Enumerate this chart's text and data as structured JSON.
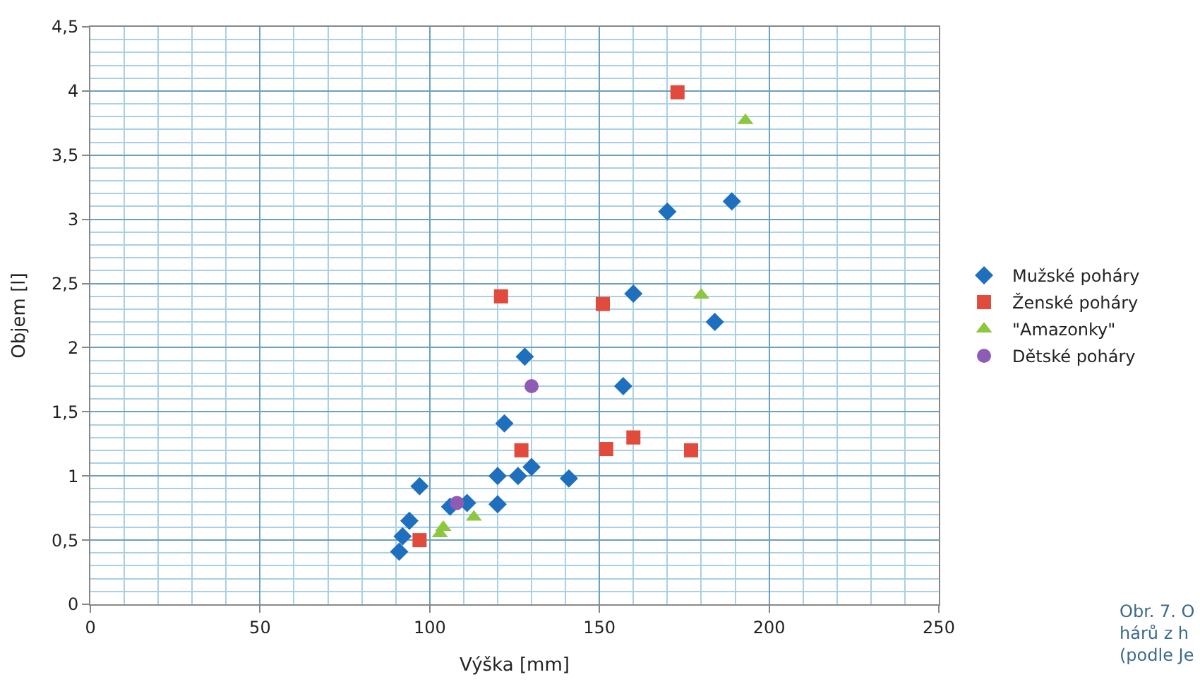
{
  "chart_data": {
    "type": "scatter",
    "xlabel": "Výška [mm]",
    "ylabel": "Objem [l]",
    "series": [
      {
        "name": "Mužské poháry",
        "color": "#1f6fbf",
        "marker": "diamond",
        "x": [
          91,
          92,
          94,
          97,
          106,
          111,
          120,
          120,
          122,
          126,
          128,
          130,
          141,
          157,
          160,
          170,
          184,
          189
        ],
        "values": [
          0.41,
          0.53,
          0.65,
          0.92,
          0.76,
          0.79,
          0.78,
          1.0,
          1.41,
          1.0,
          1.93,
          1.07,
          0.98,
          1.7,
          2.42,
          3.06,
          2.2,
          3.14
        ]
      },
      {
        "name": "Ženské poháry",
        "color": "#e04b3c",
        "marker": "square",
        "x": [
          97,
          121,
          127,
          151,
          152,
          160,
          173,
          177
        ],
        "values": [
          0.5,
          2.4,
          1.2,
          2.34,
          1.21,
          1.3,
          3.99,
          1.2
        ]
      },
      {
        "name": "\"Amazonky\"",
        "color": "#8dc63f",
        "marker": "triangle",
        "x": [
          103,
          104,
          113,
          180,
          193
        ],
        "values": [
          0.55,
          0.6,
          0.68,
          2.41,
          3.77
        ]
      },
      {
        "name": "Dětské poháry",
        "color": "#8e5bb5",
        "marker": "circle",
        "x": [
          108,
          130
        ],
        "values": [
          0.79,
          1.7
        ]
      }
    ],
    "xlim": [
      0,
      250
    ],
    "xticks": [
      0,
      {
        "value": 10,
        "label": null
      },
      {
        "value": 20,
        "label": null
      },
      {
        "value": 30,
        "label": null
      },
      {
        "value": 40,
        "label": null
      },
      50,
      {
        "value": 60,
        "label": null
      },
      {
        "value": 70,
        "label": null
      },
      {
        "value": 80,
        "label": null
      },
      {
        "value": 90,
        "label": null
      },
      100,
      {
        "value": 110,
        "label": null
      },
      {
        "value": 120,
        "label": null
      },
      {
        "value": 130,
        "label": null
      },
      {
        "value": 140,
        "label": null
      },
      150,
      {
        "value": 160,
        "label": null
      },
      {
        "value": 170,
        "label": null
      },
      {
        "value": 180,
        "label": null
      },
      {
        "value": 190,
        "label": null
      },
      200,
      {
        "value": 210,
        "label": null
      },
      {
        "value": 220,
        "label": null
      },
      {
        "value": 230,
        "label": null
      },
      {
        "value": 240,
        "label": null
      },
      250
    ],
    "ylim": [
      0,
      4.5
    ],
    "yticks": [
      0,
      {
        "value": 0.1,
        "label": null
      },
      {
        "value": 0.2,
        "label": null
      },
      {
        "value": 0.3,
        "label": null
      },
      {
        "value": 0.4,
        "label": null
      },
      {
        "value": 0.5,
        "label": "0,5"
      },
      {
        "value": 0.6,
        "label": null
      },
      {
        "value": 0.7,
        "label": null
      },
      {
        "value": 0.8,
        "label": null
      },
      {
        "value": 0.9,
        "label": null
      },
      1,
      {
        "value": 1.1,
        "label": null
      },
      {
        "value": 1.2,
        "label": null
      },
      {
        "value": 1.3,
        "label": null
      },
      {
        "value": 1.4,
        "label": null
      },
      {
        "value": 1.5,
        "label": "1,5"
      },
      {
        "value": 1.6,
        "label": null
      },
      {
        "value": 1.7,
        "label": null
      },
      {
        "value": 1.8,
        "label": null
      },
      {
        "value": 1.9,
        "label": null
      },
      2,
      {
        "value": 2.1,
        "label": null
      },
      {
        "value": 2.2,
        "label": null
      },
      {
        "value": 2.3,
        "label": null
      },
      {
        "value": 2.4,
        "label": null
      },
      {
        "value": 2.5,
        "label": "2,5"
      },
      {
        "value": 2.6,
        "label": null
      },
      {
        "value": 2.7,
        "label": null
      },
      {
        "value": 2.8,
        "label": null
      },
      {
        "value": 2.9,
        "label": null
      },
      3,
      {
        "value": 3.1,
        "label": null
      },
      {
        "value": 3.2,
        "label": null
      },
      {
        "value": 3.3,
        "label": null
      },
      {
        "value": 3.4,
        "label": null
      },
      {
        "value": 3.5,
        "label": "3,5"
      },
      {
        "value": 3.6,
        "label": null
      },
      {
        "value": 3.7,
        "label": null
      },
      {
        "value": 3.8,
        "label": null
      },
      {
        "value": 3.9,
        "label": null
      },
      4,
      {
        "value": 4.1,
        "label": null
      },
      {
        "value": 4.2,
        "label": null
      },
      {
        "value": 4.3,
        "label": null
      },
      {
        "value": 4.4,
        "label": null
      },
      {
        "value": 4.5,
        "label": "4,5"
      }
    ],
    "grid": true,
    "legend": "right",
    "annotations": [
      "Obr. 7. O\nhárů z h\n(podle Je"
    ]
  }
}
